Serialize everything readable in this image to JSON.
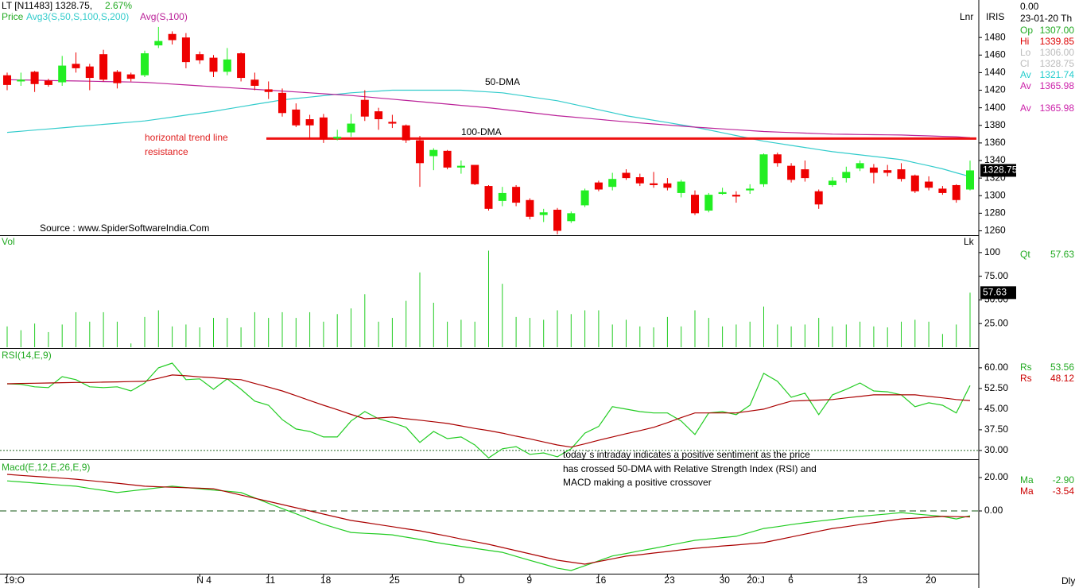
{
  "header": {
    "title": "LT [N11483] 1328.75,",
    "change": "2.67%",
    "price_label": "Price"
  },
  "axis": {
    "mode": "Lnr",
    "brand": "IRIS",
    "vol_mode": "Lk",
    "interval": "Dly"
  },
  "side": {
    "top": "0.00",
    "date": "23-01-20 Th",
    "price_rows": [
      {
        "label": "Op",
        "value": "1307.00",
        "color": "#22aa22"
      },
      {
        "label": "Hi",
        "value": "1339.85",
        "color": "#dd0000"
      },
      {
        "label": "Lo",
        "value": "1306.00",
        "color": "#bbbbbb"
      },
      {
        "label": "Cl",
        "value": "1328.75",
        "color": "#bbbbbb"
      },
      {
        "label": "Av",
        "value": "1321.74",
        "color": "#22cccc"
      },
      {
        "label": "Av",
        "value": "1365.98",
        "color": "#cc22aa"
      }
    ],
    "price_rows2": [
      {
        "label": "Av",
        "value": "1365.98",
        "color": "#cc22aa"
      }
    ],
    "vol_rows": [
      {
        "label": "Qt",
        "value": "57.63",
        "color": "#22aa22"
      }
    ],
    "rsi_rows": [
      {
        "label": "Rs",
        "value": "53.56",
        "color": "#22aa22"
      },
      {
        "label": "Rs",
        "value": "48.12",
        "color": "#cc0000"
      }
    ],
    "macd_rows": [
      {
        "label": "Ma",
        "value": "-2.90",
        "color": "#22aa22"
      },
      {
        "label": "Ma",
        "value": "-3.54",
        "color": "#cc0000"
      }
    ],
    "price_tag": "1328.75",
    "vol_tag": "57.63"
  },
  "annotations": {
    "dma50": "50-DMA",
    "dma100": "100-DMA",
    "trend1": "horizontal trend line",
    "trend2": "resistance",
    "source": "Source : www.SpiderSoftwareIndia.Com",
    "comment": [
      "today`s intraday indicates a positive sentiment as the price",
      "has crossed 50-DMA with Relative Strength Index (RSI) and",
      "MACD making a positive crossover"
    ]
  },
  "chart_data": [
    {
      "type": "candlestick",
      "up_color": "#22ee22",
      "down_color": "#ee0000",
      "categories": [
        "19:O",
        null,
        null,
        null,
        null,
        null,
        null,
        null,
        null,
        null,
        null,
        null,
        null,
        null,
        "N 4",
        null,
        null,
        null,
        null,
        "11",
        null,
        null,
        null,
        "18",
        null,
        null,
        null,
        null,
        "25",
        null,
        null,
        null,
        null,
        "D",
        null,
        null,
        null,
        null,
        "9",
        null,
        null,
        null,
        null,
        "16",
        null,
        null,
        null,
        null,
        "23",
        null,
        null,
        null,
        "30",
        null,
        "20:J",
        null,
        null,
        "6",
        null,
        null,
        null,
        null,
        "13",
        null,
        null,
        null,
        null,
        "20",
        null,
        null,
        null
      ],
      "open": [
        1437,
        1430,
        1441,
        1431,
        1429,
        1450,
        1447,
        1461,
        1441,
        1438,
        1437,
        1471,
        1484,
        1480,
        1461,
        1457,
        1441,
        1462,
        1432,
        1421,
        1417,
        1398,
        1387,
        1389,
        1365,
        1372,
        1409,
        1396,
        1384,
        1380,
        1363,
        1345,
        1351,
        1332,
        1335,
        1311,
        1294,
        1310,
        1295,
        1278,
        1284,
        1271,
        1289,
        1315,
        1310,
        1326,
        1321,
        1314,
        1314,
        1303,
        1301,
        1283,
        1302,
        1301,
        1306,
        1313,
        1347,
        1334,
        1330,
        1305,
        1312,
        1320,
        1331,
        1332,
        1329,
        1330,
        1323,
        1316,
        1308,
        1312,
        1307
      ],
      "high": [
        1440,
        1440,
        1442,
        1433,
        1459,
        1463,
        1450,
        1466,
        1443,
        1440,
        1465,
        1492,
        1487,
        1485,
        1464,
        1460,
        1468,
        1463,
        1440,
        1430,
        1422,
        1405,
        1392,
        1393,
        1375,
        1393,
        1420,
        1400,
        1392,
        1381,
        1368,
        1354,
        1352,
        1340,
        1335,
        1312,
        1310,
        1312,
        1297,
        1285,
        1286,
        1282,
        1308,
        1317,
        1326,
        1330,
        1325,
        1327,
        1320,
        1318,
        1306,
        1303,
        1309,
        1305,
        1313,
        1348,
        1349,
        1337,
        1340,
        1307,
        1321,
        1333,
        1340,
        1336,
        1335,
        1337,
        1324,
        1322,
        1311,
        1313,
        1339.85
      ],
      "low": [
        1420,
        1425,
        1418,
        1424,
        1425,
        1440,
        1420,
        1430,
        1422,
        1430,
        1435,
        1468,
        1472,
        1445,
        1450,
        1435,
        1437,
        1430,
        1420,
        1410,
        1390,
        1378,
        1364,
        1360,
        1363,
        1367,
        1385,
        1375,
        1377,
        1360,
        1310,
        1329,
        1330,
        1325,
        1312,
        1283,
        1288,
        1288,
        1273,
        1270,
        1256,
        1269,
        1287,
        1305,
        1306,
        1318,
        1311,
        1309,
        1306,
        1298,
        1278,
        1281,
        1301,
        1292,
        1302,
        1310,
        1333,
        1315,
        1316,
        1285,
        1310,
        1315,
        1328,
        1314,
        1322,
        1316,
        1303,
        1306,
        1301,
        1292,
        1306
      ],
      "close": [
        1426,
        1432,
        1427,
        1426,
        1448,
        1445,
        1434,
        1432,
        1428,
        1433,
        1462,
        1476,
        1477,
        1452,
        1454,
        1441,
        1455,
        1434,
        1425,
        1418,
        1394,
        1380,
        1380,
        1364,
        1367,
        1382,
        1390,
        1387,
        1382,
        1363,
        1337,
        1352,
        1332,
        1334,
        1313,
        1285,
        1303,
        1292,
        1276,
        1281,
        1260,
        1280,
        1306,
        1307,
        1319,
        1320,
        1314,
        1312,
        1309,
        1316,
        1280,
        1301,
        1304,
        1299,
        1308,
        1347,
        1337,
        1318,
        1320,
        1290,
        1317,
        1327,
        1337,
        1326,
        1326,
        1319,
        1305,
        1309,
        1303,
        1295,
        1328.75
      ],
      "series": [
        {
          "name": "Avg3(S,50,S,100,S,200)",
          "color": "#33cccc",
          "values": [
            1372,
            1373.3,
            1374.6,
            1375.9,
            1377.2,
            1378.5,
            1379.8,
            1381.1,
            1382.4,
            1383.7,
            1385,
            1387.2,
            1389.4,
            1391.6,
            1393.8,
            1396,
            1398.6,
            1401.2,
            1403.8,
            1406.4,
            1409,
            1410.6,
            1412.2,
            1413.8,
            1415.4,
            1417,
            1418,
            1419,
            1420,
            1420,
            1420,
            1420,
            1420,
            1420,
            1419,
            1418,
            1417,
            1414.8,
            1412.5,
            1410.3,
            1408,
            1404.6,
            1401.2,
            1397.8,
            1394.4,
            1391,
            1388.4,
            1385.8,
            1383.2,
            1380.6,
            1378,
            1374.8,
            1371.6,
            1368.4,
            1365.2,
            1362,
            1359.6,
            1357.2,
            1354.8,
            1352.4,
            1350,
            1348.2,
            1346.4,
            1344.6,
            1342.8,
            1341,
            1337.5,
            1334,
            1330.5,
            1326,
            1321.74
          ]
        },
        {
          "name": "Avg(S,100)",
          "color": "#bb2299",
          "values": [
            1432,
            1431.7,
            1431.4,
            1431.1,
            1430.8,
            1430.5,
            1430.2,
            1429.9,
            1429.6,
            1429.3,
            1429,
            1428,
            1427,
            1426,
            1425,
            1424,
            1423,
            1422,
            1421,
            1420,
            1419,
            1418,
            1417,
            1416,
            1415,
            1414,
            1412.6,
            1411.2,
            1409.8,
            1408.4,
            1407,
            1405.6,
            1404.2,
            1402.8,
            1401.4,
            1400,
            1398.2,
            1396.4,
            1394.6,
            1392.8,
            1391,
            1389.6,
            1388.2,
            1386.8,
            1385.4,
            1384,
            1382.8,
            1381.6,
            1380.4,
            1379.2,
            1378,
            1377,
            1376,
            1375,
            1374,
            1373,
            1372.4,
            1371.8,
            1371.2,
            1370.6,
            1370,
            1369.8,
            1369.6,
            1369.4,
            1369.2,
            1369,
            1368.5,
            1368,
            1367.5,
            1367,
            1365.98
          ]
        }
      ],
      "resistance": 1365,
      "resistance_color": "#ee1111",
      "ylim": [
        1255,
        1510
      ],
      "yticks": [
        1260,
        1280,
        1300,
        1320,
        1340,
        1360,
        1380,
        1400,
        1420,
        1440,
        1460,
        1480
      ]
    },
    {
      "type": "bar",
      "title": "Vol",
      "color": "#22cc22",
      "values": [
        22,
        18,
        25,
        16,
        24,
        37,
        27,
        37,
        27,
        4,
        32,
        39,
        22,
        24,
        21,
        31,
        31,
        21,
        37,
        31,
        37,
        31,
        37,
        27,
        35,
        41,
        56,
        27,
        31,
        49,
        79,
        47,
        27,
        29,
        27,
        102,
        67,
        32,
        31,
        29,
        39,
        35,
        39,
        39,
        24,
        29,
        22,
        21,
        32,
        22,
        39,
        31,
        22,
        24,
        27,
        43,
        24,
        22,
        24,
        31,
        22,
        24,
        27,
        22,
        21,
        27,
        29,
        27,
        14,
        24,
        57.63
      ],
      "ylim": [
        0,
        117.5
      ],
      "yticks": [
        {
          "value": 25,
          "label": "25.00"
        },
        {
          "value": 50,
          "label": "50.00"
        },
        {
          "value": 75,
          "label": "75.00"
        },
        100
      ]
    },
    {
      "type": "line",
      "title": "RSI(14,E,9)",
      "series": [
        {
          "name": "Rs",
          "color": "#22cc22",
          "values": [
            54.2,
            54.0,
            53.1,
            52.8,
            56.8,
            55.7,
            53.1,
            52.8,
            53.1,
            51.6,
            54.5,
            60.0,
            61.7,
            55.7,
            56.0,
            52.2,
            56.0,
            52.2,
            47.9,
            46.4,
            41.2,
            37.8,
            36.9,
            34.9,
            34.9,
            40.7,
            44.1,
            41.5,
            40.1,
            38.4,
            32.9,
            36.9,
            34.3,
            34.9,
            32.0,
            27.3,
            30.6,
            31.4,
            28.6,
            29.1,
            27.7,
            30.6,
            36.3,
            38.7,
            45.9,
            45.0,
            44.1,
            43.6,
            43.6,
            40.7,
            35.8,
            43.6,
            44.1,
            43.0,
            46.4,
            58.0,
            55.1,
            49.3,
            50.8,
            43.0,
            50.2,
            52.2,
            54.5,
            51.6,
            51.3,
            50.2,
            45.9,
            47.3,
            46.4,
            43.6,
            53.56
          ]
        },
        {
          "name": "Rs",
          "color": "#aa0000",
          "values": [
            54.2,
            54.3,
            54.4,
            54.5,
            54.6,
            54.7,
            54.7,
            54.8,
            54.9,
            55.0,
            55.1,
            56.2,
            57.4,
            57.1,
            56.7,
            56.4,
            56.0,
            55.7,
            54.3,
            53.0,
            51.6,
            49.9,
            48.1,
            46.4,
            44.8,
            43.1,
            41.5,
            41.8,
            42.1,
            41.5,
            41.0,
            40.4,
            39.8,
            38.9,
            38.0,
            37.2,
            36.3,
            35.2,
            34.2,
            33.1,
            32.0,
            31.2,
            32.4,
            33.7,
            34.9,
            36.1,
            37.2,
            38.4,
            40.1,
            41.9,
            43.6,
            43.6,
            43.6,
            43.6,
            44.3,
            45.0,
            46.5,
            47.9,
            48.1,
            48.3,
            48.5,
            49.1,
            49.6,
            50.2,
            50.2,
            50.2,
            50.2,
            49.6,
            49.1,
            48.5,
            48.12
          ]
        }
      ],
      "reference": 30,
      "reference_style": "dotted",
      "ylim": [
        26.8,
        66.6
      ],
      "yticks": [
        {
          "value": 60,
          "label": "60.00"
        },
        {
          "value": 52.5,
          "label": "52.50"
        },
        {
          "value": 45,
          "label": "45.00"
        },
        {
          "value": 37.5,
          "label": "37.50"
        },
        {
          "value": 30,
          "label": "30.00"
        }
      ]
    },
    {
      "type": "line",
      "title": "Macd(E,12,E,26,E,9)",
      "series": [
        {
          "name": "Ma",
          "color": "#22cc22",
          "values": [
            18,
            17.4,
            16.7,
            16.1,
            15.4,
            14.8,
            13.5,
            12.3,
            11,
            12,
            12.9,
            13.9,
            14.8,
            14.0,
            13.3,
            12.5,
            11.8,
            11,
            7.8,
            4.6,
            1.4,
            -1.7,
            -4.9,
            -8,
            -10.5,
            -12.9,
            -13.4,
            -13.8,
            -14.3,
            -15.7,
            -17.1,
            -18.6,
            -20,
            -21.2,
            -22.4,
            -23.6,
            -24.8,
            -27.2,
            -29.6,
            -31.9,
            -34.3,
            -35.7,
            -32.8,
            -29.9,
            -27,
            -25.5,
            -23.9,
            -22.4,
            -20.8,
            -19.2,
            -17.6,
            -16.8,
            -16,
            -15.2,
            -12.9,
            -10.5,
            -9.4,
            -8.2,
            -7.1,
            -6.1,
            -5.2,
            -4.2,
            -3.3,
            -2.5,
            -1.8,
            -1,
            -1.8,
            -2.5,
            -3.3,
            -4.8,
            -2.9
          ]
        },
        {
          "name": "Ma",
          "color": "#aa0000",
          "values": [
            21.9,
            21.3,
            20.7,
            20.2,
            19.6,
            19,
            18.2,
            17.4,
            16.6,
            15.7,
            14.8,
            14.5,
            14.2,
            13.9,
            13.6,
            13.3,
            11.4,
            9.5,
            7.6,
            5.7,
            3.8,
            1.9,
            0,
            -1.9,
            -3.8,
            -5.7,
            -6.9,
            -8.2,
            -9.4,
            -10.7,
            -11.9,
            -13.5,
            -15.1,
            -16.8,
            -18.4,
            -20,
            -21.9,
            -23.8,
            -25.7,
            -27.6,
            -29.5,
            -30.7,
            -31.9,
            -30.3,
            -28.7,
            -27.1,
            -26.2,
            -25.2,
            -24.3,
            -23.3,
            -22.4,
            -21.7,
            -21,
            -20.4,
            -19.7,
            -19,
            -17.3,
            -15.6,
            -13.9,
            -12.2,
            -10.5,
            -9.4,
            -8.2,
            -7.1,
            -5.9,
            -4.8,
            -4.3,
            -3.8,
            -3.3,
            -3.4,
            -3.54
          ]
        }
      ],
      "reference": 0,
      "reference_style": "dashed",
      "ylim": [
        -37.6,
        30
      ],
      "yticks": [
        {
          "value": 20,
          "label": "20.00"
        },
        {
          "value": 0,
          "label": "0.00"
        }
      ]
    }
  ]
}
